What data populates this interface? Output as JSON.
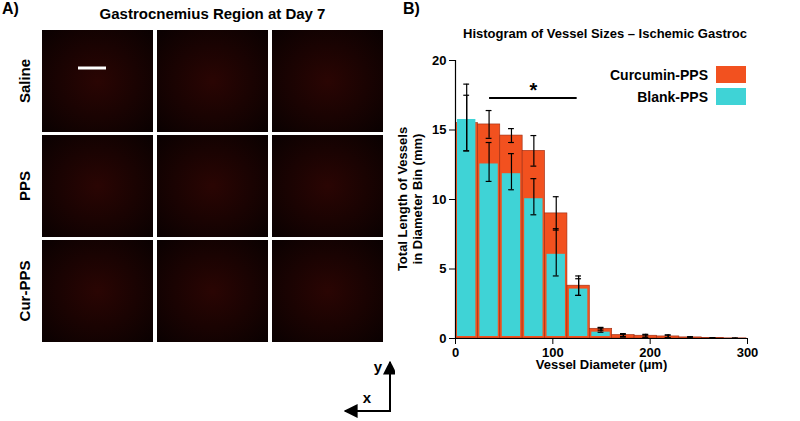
{
  "chart_data": {
    "type": "bar",
    "panel_label": "B)",
    "title": "Histogram of Vessel Sizes – Ischemic Gastroc",
    "xlabel": "Vessel Diameter (μm)",
    "ylabel": "Total Length of Vessels\nin Diameter Bin (mm)",
    "bins": [
      0,
      23,
      46,
      69,
      92,
      115,
      138,
      161,
      184,
      207,
      230,
      253,
      276,
      299
    ],
    "series": [
      {
        "name": "Curcumin-PPS",
        "color": "#f2511f",
        "values": [
          15.5,
          15.4,
          14.6,
          13.5,
          9.0,
          3.8,
          0.7,
          0.25,
          0.2,
          0.15,
          0.08,
          0.03,
          0.01
        ],
        "errors": [
          2.0,
          1.0,
          0.5,
          1.1,
          1.2,
          0.7,
          0.1,
          0.1,
          0.1,
          0.1,
          0.05,
          0.02,
          0.01
        ]
      },
      {
        "name": "Blank-PPS",
        "color": "#3fd3d6",
        "values": [
          15.9,
          12.7,
          12.0,
          10.2,
          6.2,
          3.7,
          0.6,
          0.2,
          0.15,
          0.15,
          0.05,
          0.02,
          0.01
        ],
        "errors": [
          2.4,
          1.4,
          1.3,
          1.3,
          1.7,
          0.6,
          0.15,
          0.1,
          0.1,
          0.1,
          0.05,
          0.02,
          0.01
        ]
      }
    ],
    "xlim": [
      0,
      300
    ],
    "xticks": [
      0,
      100,
      200,
      300
    ],
    "ylim": [
      0,
      20
    ],
    "yticks": [
      0,
      5,
      10,
      15,
      20
    ],
    "legend": "top-right",
    "annotations": [
      {
        "text": "*",
        "x": [
          35,
          125
        ],
        "y": 17.3
      }
    ]
  },
  "panel_a": {
    "panel_label": "A)",
    "title": "Gastrocnemius Region at Day 7",
    "rows": [
      "Saline",
      "PPS",
      "Cur-PPS"
    ],
    "columns": 3,
    "axes": [
      "x",
      "y"
    ]
  }
}
